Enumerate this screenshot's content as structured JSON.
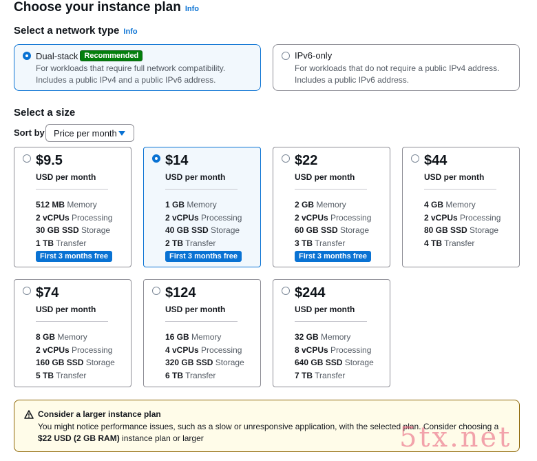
{
  "header": {
    "title": "Choose your instance plan",
    "info_label": "Info"
  },
  "network": {
    "title": "Select a network type",
    "info_label": "Info",
    "options": [
      {
        "label": "Dual-stack",
        "badge": "Recommended",
        "selected": true,
        "desc_line1": "For workloads that require full network compatibility.",
        "desc_line2": "Includes a public IPv4 and a public IPv6 address."
      },
      {
        "label": "IPv6-only",
        "badge": "",
        "selected": false,
        "desc_line1": "For workloads that do not require a public IPv4 address.",
        "desc_line2": "Includes a public IPv6 address."
      }
    ]
  },
  "size": {
    "title": "Select a size",
    "sort_label": "Sort by",
    "sort_value": "Price per month",
    "unit_label": "USD per month",
    "plans": [
      {
        "price": "$9.5",
        "selected": false,
        "memory": "512 MB",
        "vcpus": "2 vCPUs",
        "storage": "30 GB SSD",
        "transfer": "1 TB",
        "promo": "First 3 months free"
      },
      {
        "price": "$14",
        "selected": true,
        "memory": "1 GB",
        "vcpus": "2 vCPUs",
        "storage": "40 GB SSD",
        "transfer": "2 TB",
        "promo": "First 3 months free"
      },
      {
        "price": "$22",
        "selected": false,
        "memory": "2 GB",
        "vcpus": "2 vCPUs",
        "storage": "60 GB SSD",
        "transfer": "3 TB",
        "promo": "First 3 months free"
      },
      {
        "price": "$44",
        "selected": false,
        "memory": "4 GB",
        "vcpus": "2 vCPUs",
        "storage": "80 GB SSD",
        "transfer": "4 TB",
        "promo": ""
      },
      {
        "price": "$74",
        "selected": false,
        "memory": "8 GB",
        "vcpus": "2 vCPUs",
        "storage": "160 GB SSD",
        "transfer": "5 TB",
        "promo": ""
      },
      {
        "price": "$124",
        "selected": false,
        "memory": "16 GB",
        "vcpus": "4 vCPUs",
        "storage": "320 GB SSD",
        "transfer": "6 TB",
        "promo": ""
      },
      {
        "price": "$244",
        "selected": false,
        "memory": "32 GB",
        "vcpus": "8 vCPUs",
        "storage": "640 GB SSD",
        "transfer": "7 TB",
        "promo": ""
      }
    ],
    "spec_labels": {
      "memory": "Memory",
      "vcpus": "Processing",
      "storage": "Storage",
      "transfer": "Transfer"
    }
  },
  "alert": {
    "title": "Consider a larger instance plan",
    "body_prefix": "You might notice performance issues, such as a slow or unresponsive application, with the selected plan. Consider choosing a ",
    "body_emphasis": "$22 USD (2 GB RAM)",
    "body_suffix": " instance plan or larger",
    "icon": "warning-icon"
  },
  "watermark": "5tx.net",
  "colors": {
    "accent": "#0972d3",
    "recommended": "#037f0c",
    "warning_bg": "#fffce9",
    "warning_border": "#8d6605"
  }
}
